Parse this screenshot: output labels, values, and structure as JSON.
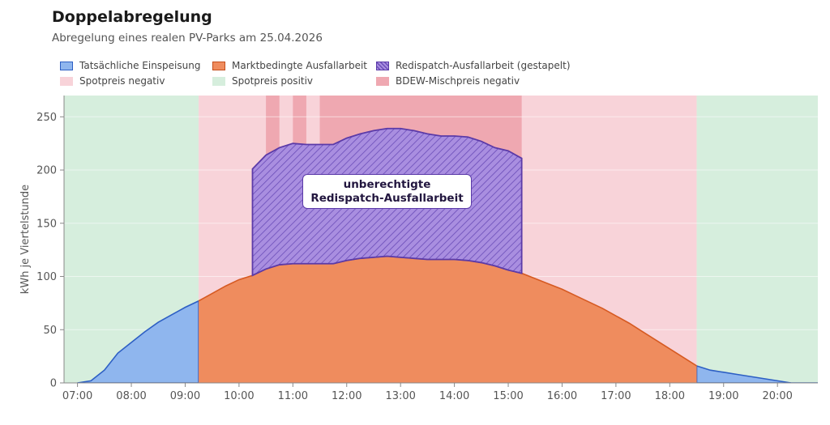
{
  "title": "Doppelabregelung",
  "subtitle": "Abregelung eines realen PV-Parks am 25.04.2026",
  "legend": [
    {
      "label": "Tatsächliche Einspeisung",
      "color": "#8fb6ee",
      "edge": "#2d5fc4",
      "hatch": false
    },
    {
      "label": "Marktbedingte Ausfallarbeit",
      "color": "#ef8c5e",
      "edge": "#c54e1c",
      "hatch": false
    },
    {
      "label": "Redispatch-Ausfallarbeit (gestapelt)",
      "color": "#a98ee0",
      "edge": "#5b3aa8",
      "hatch": true
    },
    {
      "label": "Spotpreis negativ",
      "color": "#f8d3d9",
      "edge": "#f8d3d9",
      "hatch": false
    },
    {
      "label": "Spotpreis positiv",
      "color": "#d6eedd",
      "edge": "#d6eedd",
      "hatch": false
    },
    {
      "label": "BDEW-Mischpreis negativ",
      "color": "#efa8b1",
      "edge": "#efa8b1",
      "hatch": false
    }
  ],
  "annotation": {
    "line1": "unberechtigte",
    "line2": "Redispatch-Ausfallarbeit"
  },
  "chart_data": {
    "type": "area",
    "ylabel": "kWh je Viertelstunde",
    "xlabel": "",
    "xlim": [
      6.75,
      20.75
    ],
    "ylim": [
      0,
      270
    ],
    "x_ticks": [
      7,
      8,
      9,
      10,
      11,
      12,
      13,
      14,
      15,
      16,
      17,
      18,
      19,
      20
    ],
    "x_tick_labels": [
      "07:00",
      "08:00",
      "09:00",
      "10:00",
      "11:00",
      "12:00",
      "13:00",
      "14:00",
      "15:00",
      "16:00",
      "17:00",
      "18:00",
      "19:00",
      "20:00"
    ],
    "y_ticks": [
      0,
      50,
      100,
      150,
      200,
      250
    ],
    "grid": "y",
    "background_bands": [
      {
        "type": "Spotpreis positiv",
        "from": 6.75,
        "to": 9.25,
        "color": "#d6eedd"
      },
      {
        "type": "Spotpreis negativ",
        "from": 9.25,
        "to": 18.5,
        "color": "#f8d3d9"
      },
      {
        "type": "BDEW-Mischpreis negativ",
        "from": 10.5,
        "to": 10.75,
        "color": "#efa8b1"
      },
      {
        "type": "BDEW-Mischpreis negativ",
        "from": 11.0,
        "to": 11.25,
        "color": "#efa8b1"
      },
      {
        "type": "BDEW-Mischpreis negativ",
        "from": 11.5,
        "to": 15.25,
        "color": "#efa8b1"
      },
      {
        "type": "Spotpreis positiv",
        "from": 18.5,
        "to": 20.75,
        "color": "#d6eedd"
      }
    ],
    "series": [
      {
        "name": "Tatsächliche Einspeisung",
        "x": [
          7.0,
          7.25,
          7.5,
          7.75,
          8.0,
          8.25,
          8.5,
          8.75,
          9.0,
          9.25,
          18.5,
          18.75,
          19.0,
          19.25,
          19.5,
          19.75,
          20.0,
          20.25
        ],
        "y": [
          0,
          2,
          12,
          28,
          38,
          48,
          57,
          64,
          71,
          77,
          16,
          12,
          10,
          8,
          6,
          4,
          2,
          0
        ]
      },
      {
        "name": "Marktbedingte Ausfallarbeit",
        "x": [
          9.25,
          9.5,
          9.75,
          10.0,
          10.25,
          10.5,
          10.75,
          11.0,
          11.25,
          11.5,
          11.75,
          12.0,
          12.25,
          12.5,
          12.75,
          13.0,
          13.25,
          13.5,
          13.75,
          14.0,
          14.25,
          14.5,
          14.75,
          15.0,
          15.25,
          15.5,
          15.75,
          16.0,
          16.25,
          16.5,
          16.75,
          17.0,
          17.25,
          17.5,
          17.75,
          18.0,
          18.25,
          18.5
        ],
        "y": [
          77,
          84,
          91,
          97,
          101,
          107,
          111,
          112,
          112,
          112,
          112,
          115,
          117,
          118,
          119,
          118,
          117,
          116,
          116,
          116,
          115,
          113,
          110,
          106,
          103,
          98,
          93,
          88,
          82,
          76,
          70,
          63,
          56,
          48,
          40,
          32,
          24,
          16
        ]
      },
      {
        "name": "Redispatch-Ausfallarbeit (gestapelt)",
        "x": [
          10.25,
          10.5,
          10.75,
          11.0,
          11.25,
          11.5,
          11.75,
          12.0,
          12.25,
          12.5,
          12.75,
          13.0,
          13.25,
          13.5,
          13.75,
          14.0,
          14.25,
          14.5,
          14.75,
          15.0,
          15.25
        ],
        "y": [
          201,
          214,
          221,
          225,
          224,
          224,
          224,
          230,
          234,
          237,
          239,
          239,
          237,
          234,
          232,
          232,
          231,
          227,
          221,
          218,
          211
        ]
      }
    ]
  }
}
